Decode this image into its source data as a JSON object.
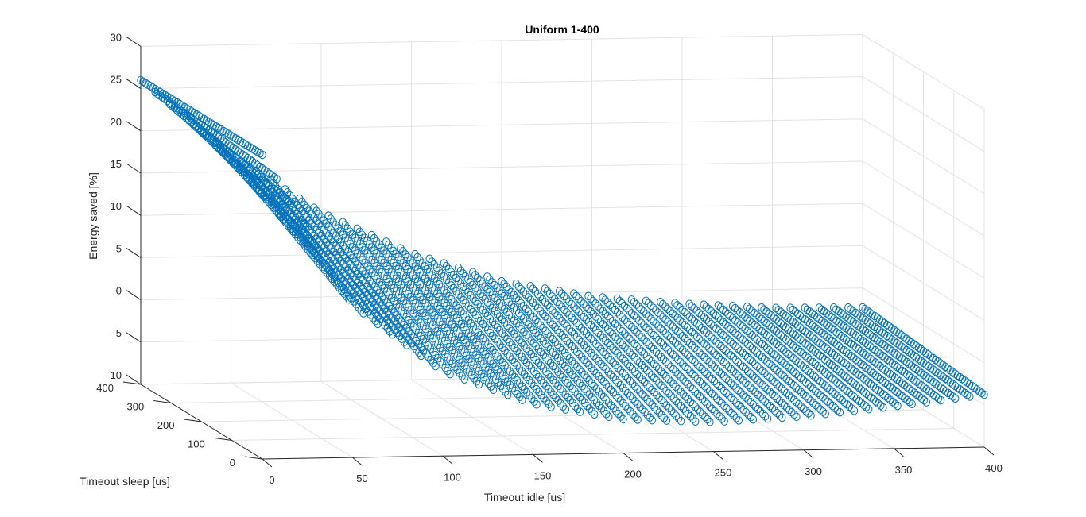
{
  "chart_data": {
    "type": "scatter3",
    "title": "Uniform 1-400",
    "xlabel": "Timeout idle [us]",
    "ylabel": "Timeout sleep [us]",
    "zlabel": "Energy saved [%]",
    "xlim": [
      0,
      400
    ],
    "ylim": [
      0,
      400
    ],
    "zlim": [
      -10,
      30
    ],
    "xticks": [
      "0",
      "50",
      "100",
      "150",
      "200",
      "250",
      "300",
      "350",
      "400"
    ],
    "yticks": [
      "0",
      "100",
      "200",
      "300",
      "400"
    ],
    "zticks": [
      "-10",
      "-5",
      "0",
      "5",
      "10",
      "15",
      "20",
      "25",
      "30"
    ],
    "grid": true,
    "marker": "circle",
    "color": "#0072BD",
    "series": [
      {
        "description_of_surface": "Sampled points of energy saved versus timeout idle and timeout sleep",
        "x": [
          0,
          50,
          100,
          150,
          200,
          250,
          300,
          350,
          400
        ],
        "y": [
          0,
          50,
          100,
          150,
          200,
          250,
          300,
          350,
          400
        ],
        "z_edge_sleep_400": [
          26,
          17,
          10,
          5,
          1.5,
          -0.5,
          -1.5,
          -2.2,
          -2.3
        ],
        "z_edge_sleep_0": [
          26,
          8,
          0,
          -4,
          -6,
          -6.5,
          -6,
          -5,
          -3.8
        ]
      }
    ]
  }
}
